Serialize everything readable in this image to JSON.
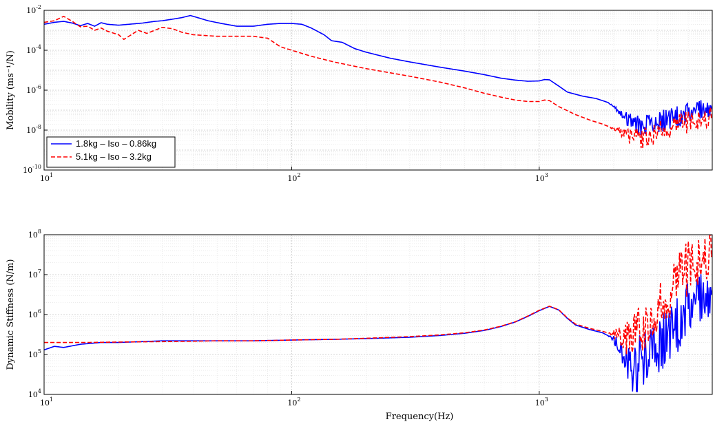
{
  "chart_data": [
    {
      "type": "line",
      "ylabel": "Mobility (ms⁻¹/N)",
      "xlabel": "",
      "xscale": "log",
      "yscale": "log",
      "xlim": [
        10,
        5000
      ],
      "ylim": [
        1e-10,
        0.01
      ],
      "x_ticks": [
        {
          "base": "10",
          "exp": "1",
          "value": 10
        },
        {
          "base": "10",
          "exp": "2",
          "value": 100
        },
        {
          "base": "10",
          "exp": "3",
          "value": 1000
        }
      ],
      "y_ticks": [
        {
          "base": "10",
          "exp": "-10",
          "value": 1e-10
        },
        {
          "base": "10",
          "exp": "-8",
          "value": 1e-08
        },
        {
          "base": "10",
          "exp": "-6",
          "value": 1e-06
        },
        {
          "base": "10",
          "exp": "-4",
          "value": 0.0001
        },
        {
          "base": "10",
          "exp": "-2",
          "value": 0.01
        }
      ],
      "grid": true,
      "legend_position": "bottom-left",
      "series": [
        {
          "name": "1.8kg – Iso – 0.86kg",
          "color": "#0000ff",
          "dash": "solid",
          "points": [
            [
              10,
              0.002
            ],
            [
              11,
              0.0025
            ],
            [
              12,
              0.0028
            ],
            [
              13,
              0.0023
            ],
            [
              14,
              0.0017
            ],
            [
              15,
              0.0022
            ],
            [
              16,
              0.0016
            ],
            [
              17,
              0.0024
            ],
            [
              18,
              0.002
            ],
            [
              20,
              0.0018
            ],
            [
              22,
              0.002
            ],
            [
              25,
              0.0023
            ],
            [
              28,
              0.0028
            ],
            [
              30,
              0.003
            ],
            [
              33,
              0.0036
            ],
            [
              36,
              0.0043
            ],
            [
              39,
              0.0055
            ],
            [
              42,
              0.0042
            ],
            [
              46,
              0.003
            ],
            [
              52,
              0.0022
            ],
            [
              60,
              0.0016
            ],
            [
              70,
              0.0016
            ],
            [
              80,
              0.002
            ],
            [
              90,
              0.0022
            ],
            [
              100,
              0.0022
            ],
            [
              110,
              0.002
            ],
            [
              120,
              0.0013
            ],
            [
              135,
              0.0006
            ],
            [
              145,
              0.0003
            ],
            [
              160,
              0.00025
            ],
            [
              180,
              0.00012
            ],
            [
              200,
              8e-05
            ],
            [
              250,
              4e-05
            ],
            [
              300,
              2.6e-05
            ],
            [
              400,
              1.4e-05
            ],
            [
              500,
              9e-06
            ],
            [
              600,
              6e-06
            ],
            [
              700,
              4e-06
            ],
            [
              800,
              3.2e-06
            ],
            [
              900,
              2.8e-06
            ],
            [
              1000,
              2.9e-06
            ],
            [
              1050,
              3.4e-06
            ],
            [
              1100,
              3.3e-06
            ],
            [
              1200,
              1.6e-06
            ],
            [
              1300,
              8e-07
            ],
            [
              1500,
              5e-07
            ],
            [
              1700,
              3.8e-07
            ],
            [
              1900,
              2.4e-07
            ],
            [
              2100,
              8e-08
            ],
            [
              2300,
              3e-08
            ],
            [
              2500,
              1.8e-08
            ],
            [
              3000,
              2.5e-08
            ],
            [
              3500,
              4e-08
            ],
            [
              4000,
              7e-08
            ],
            [
              4500,
              1.2e-07
            ],
            [
              5000,
              1.5e-07
            ]
          ]
        },
        {
          "name": "5.1kg – Iso – 3.2kg",
          "color": "#ff0000",
          "dash": "dashed",
          "points": [
            [
              10,
              0.0025
            ],
            [
              11,
              0.003
            ],
            [
              12,
              0.005
            ],
            [
              13,
              0.0028
            ],
            [
              14,
              0.0015
            ],
            [
              15,
              0.0016
            ],
            [
              16,
              0.001
            ],
            [
              17,
              0.0013
            ],
            [
              18,
              0.0009
            ],
            [
              20,
              0.0006
            ],
            [
              21,
              0.00035
            ],
            [
              22,
              0.0005
            ],
            [
              24,
              0.001
            ],
            [
              26,
              0.0007
            ],
            [
              28,
              0.001
            ],
            [
              30,
              0.0014
            ],
            [
              33,
              0.0012
            ],
            [
              36,
              0.0008
            ],
            [
              40,
              0.0006
            ],
            [
              50,
              0.0005
            ],
            [
              60,
              0.0005
            ],
            [
              70,
              0.0005
            ],
            [
              80,
              0.0004
            ],
            [
              90,
              0.00015
            ],
            [
              100,
              0.0001
            ],
            [
              120,
              5e-05
            ],
            [
              150,
              2.5e-05
            ],
            [
              200,
              1.2e-05
            ],
            [
              300,
              5e-06
            ],
            [
              400,
              2.5e-06
            ],
            [
              500,
              1.3e-06
            ],
            [
              600,
              7e-07
            ],
            [
              700,
              4.5e-07
            ],
            [
              800,
              3.2e-07
            ],
            [
              900,
              2.7e-07
            ],
            [
              1000,
              2.7e-07
            ],
            [
              1050,
              3.2e-07
            ],
            [
              1100,
              3e-07
            ],
            [
              1200,
              1.5e-07
            ],
            [
              1400,
              6e-08
            ],
            [
              1600,
              3.2e-08
            ],
            [
              1800,
              2e-08
            ],
            [
              2000,
              1.2e-08
            ],
            [
              2300,
              5e-09
            ],
            [
              2600,
              4e-09
            ],
            [
              3000,
              8e-09
            ],
            [
              3500,
              1.5e-08
            ],
            [
              4000,
              2.5e-08
            ],
            [
              4500,
              4e-08
            ],
            [
              5000,
              5e-08
            ]
          ]
        }
      ]
    },
    {
      "type": "line",
      "ylabel": "Dynamic Stiffness (N/m)",
      "xlabel": "Frequency(Hz)",
      "xscale": "log",
      "yscale": "log",
      "xlim": [
        10,
        5000
      ],
      "ylim": [
        10000.0,
        100000000.0
      ],
      "x_ticks": [
        {
          "base": "10",
          "exp": "1",
          "value": 10
        },
        {
          "base": "10",
          "exp": "2",
          "value": 100
        },
        {
          "base": "10",
          "exp": "3",
          "value": 1000
        }
      ],
      "y_ticks": [
        {
          "base": "10",
          "exp": "4",
          "value": 10000.0
        },
        {
          "base": "10",
          "exp": "5",
          "value": 100000.0
        },
        {
          "base": "10",
          "exp": "6",
          "value": 1000000.0
        },
        {
          "base": "10",
          "exp": "7",
          "value": 10000000.0
        },
        {
          "base": "10",
          "exp": "8",
          "value": 100000000.0
        }
      ],
      "grid": true,
      "series": [
        {
          "color": "#0000ff",
          "dash": "solid",
          "points": [
            [
              10,
              130000.0
            ],
            [
              11,
              160000.0
            ],
            [
              12,
              150000.0
            ],
            [
              14,
              180000.0
            ],
            [
              17,
              200000.0
            ],
            [
              20,
              200000.0
            ],
            [
              25,
              210000.0
            ],
            [
              30,
              220000.0
            ],
            [
              40,
              220000.0
            ],
            [
              50,
              220000.0
            ],
            [
              70,
              220000.0
            ],
            [
              100,
              230000.0
            ],
            [
              150,
              240000.0
            ],
            [
              200,
              250000.0
            ],
            [
              300,
              270000.0
            ],
            [
              400,
              300000.0
            ],
            [
              500,
              340000.0
            ],
            [
              600,
              400000.0
            ],
            [
              700,
              500000.0
            ],
            [
              800,
              650000.0
            ],
            [
              900,
              900000.0
            ],
            [
              1000,
              1250000.0
            ],
            [
              1100,
              1600000.0
            ],
            [
              1200,
              1300000.0
            ],
            [
              1300,
              800000.0
            ],
            [
              1400,
              550000.0
            ],
            [
              1600,
              420000.0
            ],
            [
              1800,
              350000.0
            ],
            [
              2000,
              250000.0
            ],
            [
              2200,
              100000.0
            ],
            [
              2400,
              30000.0
            ],
            [
              2600,
              80000.0
            ],
            [
              3000,
              150000.0
            ],
            [
              3500,
              400000.0
            ],
            [
              4000,
              1500000.0
            ],
            [
              4500,
              3000000.0
            ],
            [
              5000,
              4000000.0
            ]
          ]
        },
        {
          "color": "#ff0000",
          "dash": "dashed",
          "points": [
            [
              10,
              200000.0
            ],
            [
              12,
              200000.0
            ],
            [
              15,
              200000.0
            ],
            [
              20,
              205000.0
            ],
            [
              30,
              210000.0
            ],
            [
              40,
              215000.0
            ],
            [
              50,
              220000.0
            ],
            [
              70,
              220000.0
            ],
            [
              100,
              230000.0
            ],
            [
              150,
              240000.0
            ],
            [
              200,
              255000.0
            ],
            [
              300,
              280000.0
            ],
            [
              400,
              310000.0
            ],
            [
              500,
              350000.0
            ],
            [
              600,
              410000.0
            ],
            [
              700,
              510000.0
            ],
            [
              800,
              660000.0
            ],
            [
              900,
              920000.0
            ],
            [
              1000,
              1280000.0
            ],
            [
              1100,
              1620000.0
            ],
            [
              1200,
              1320000.0
            ],
            [
              1300,
              820000.0
            ],
            [
              1400,
              580000.0
            ],
            [
              1600,
              450000.0
            ],
            [
              1800,
              380000.0
            ],
            [
              2000,
              320000.0
            ],
            [
              2200,
              250000.0
            ],
            [
              2500,
              300000.0
            ],
            [
              3000,
              1000000.0
            ],
            [
              3500,
              5000000.0
            ],
            [
              4000,
              15000000.0
            ],
            [
              4500,
              30000000.0
            ],
            [
              5000,
              40000000.0
            ]
          ]
        }
      ]
    }
  ]
}
